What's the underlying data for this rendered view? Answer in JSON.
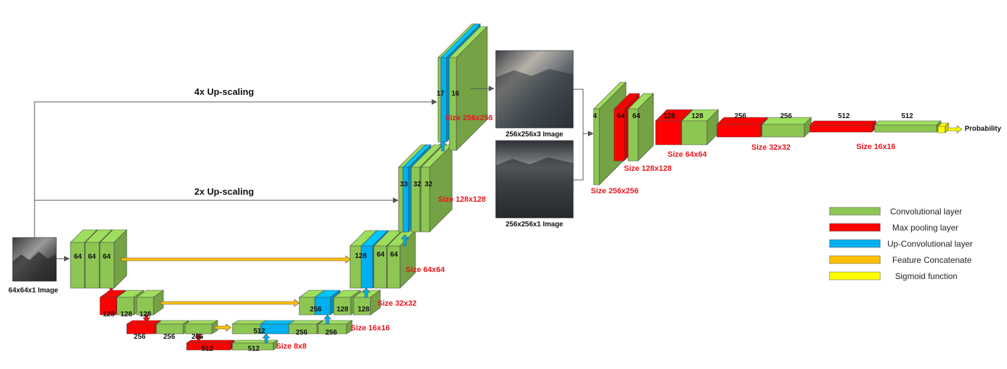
{
  "colors": {
    "conv": "#8dc653",
    "pool": "#ff0000",
    "upconv": "#00b0f0",
    "concat": "#ffc000",
    "sigmoid": "#ffff00"
  },
  "input": {
    "caption": "64x64x1 Image"
  },
  "scaling": {
    "x4": "4x Up-scaling",
    "x2": "2x Up-scaling"
  },
  "generator": {
    "enc1": [
      "64",
      "64",
      "64"
    ],
    "enc2": [
      "128",
      "128",
      "128"
    ],
    "enc3": [
      "256",
      "256",
      "256"
    ],
    "bottom": [
      "512",
      "512"
    ],
    "dec16": [
      "512",
      "256",
      "256"
    ],
    "dec32": [
      "256",
      "128",
      "128"
    ],
    "dec64": [
      "128",
      "64",
      "64"
    ],
    "dec128": [
      "33",
      "32",
      "32"
    ],
    "dec256": [
      "17",
      "16"
    ],
    "sizes": {
      "s8": "Size 8x8",
      "s16": "Size 16x16",
      "s32": "Size 32x32",
      "s64": "Size 64x64",
      "s128": "Size 128x128",
      "s256": "Size 256x256"
    }
  },
  "images": {
    "rgb_caption": "256x256x3 Image",
    "gray_caption": "256x256x1 Image"
  },
  "discriminator": {
    "layers": [
      "4",
      "64",
      "64",
      "128",
      "128",
      "256",
      "256",
      "512",
      "512"
    ],
    "sizes": {
      "s256": "Size 256x256",
      "s128": "Size 128x128",
      "s64": "Size 64x64",
      "s32": "Size 32x32",
      "s16": "Size 16x16"
    },
    "output": "Probability"
  },
  "legend": [
    {
      "label": "Convolutional layer",
      "color": "conv"
    },
    {
      "label": "Max pooling layer",
      "color": "pool"
    },
    {
      "label": "Up-Convolutional layer",
      "color": "upconv"
    },
    {
      "label": "Feature Concatenate",
      "color": "concat"
    },
    {
      "label": "Sigmoid function",
      "color": "sigmoid"
    }
  ]
}
